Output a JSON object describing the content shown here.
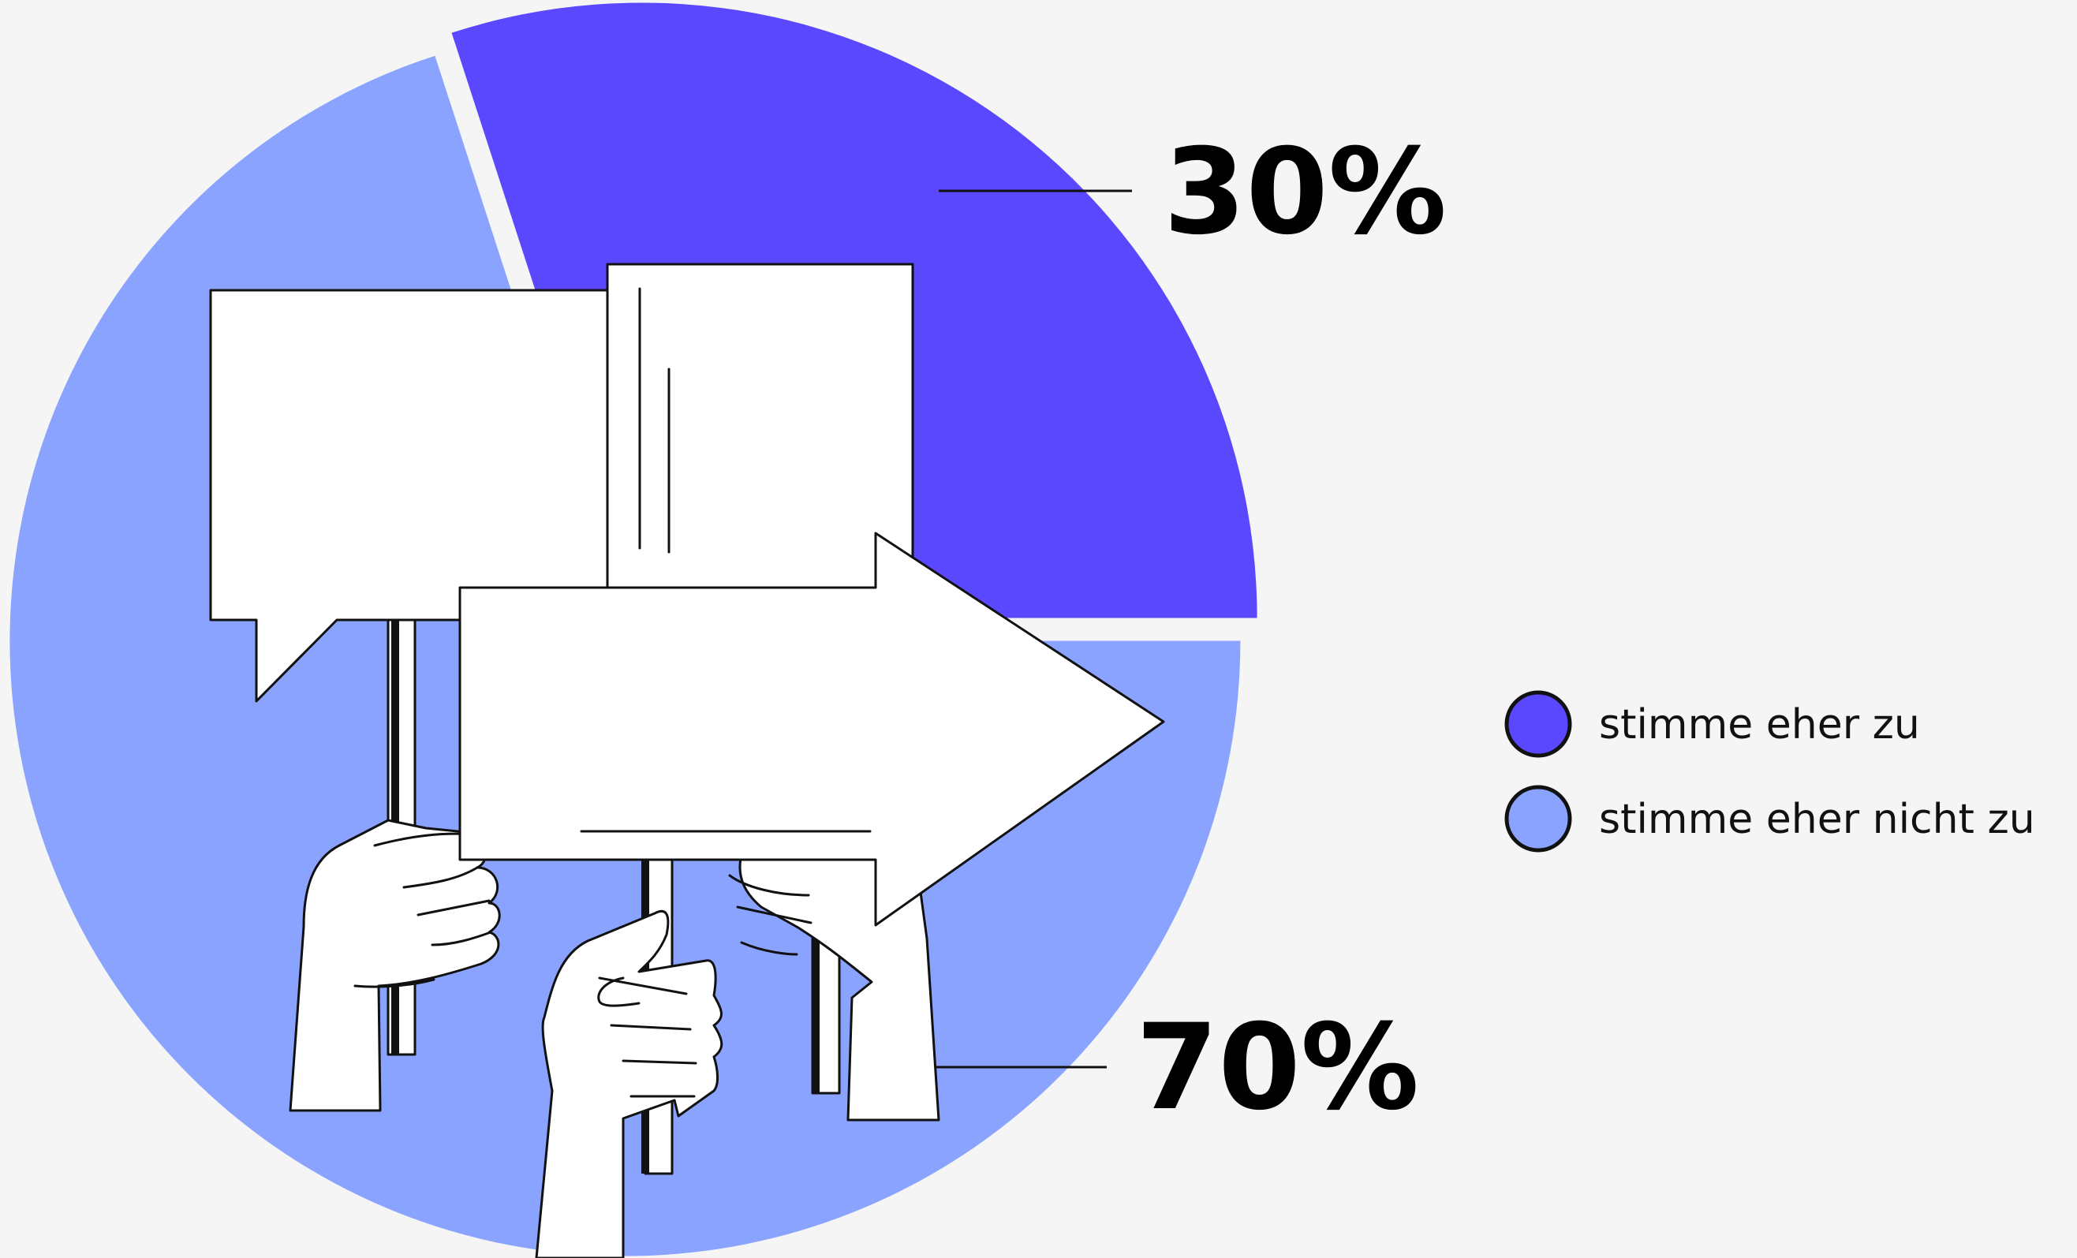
{
  "chart_data": {
    "type": "pie",
    "slices": [
      {
        "label": "stimme eher zu",
        "value": 30,
        "display": "30%",
        "color": "#5a48ff"
      },
      {
        "label": "stimme eher nicht zu",
        "value": 70,
        "display": "70%",
        "color": "#8aa3ff"
      }
    ],
    "legend": "right"
  }
}
